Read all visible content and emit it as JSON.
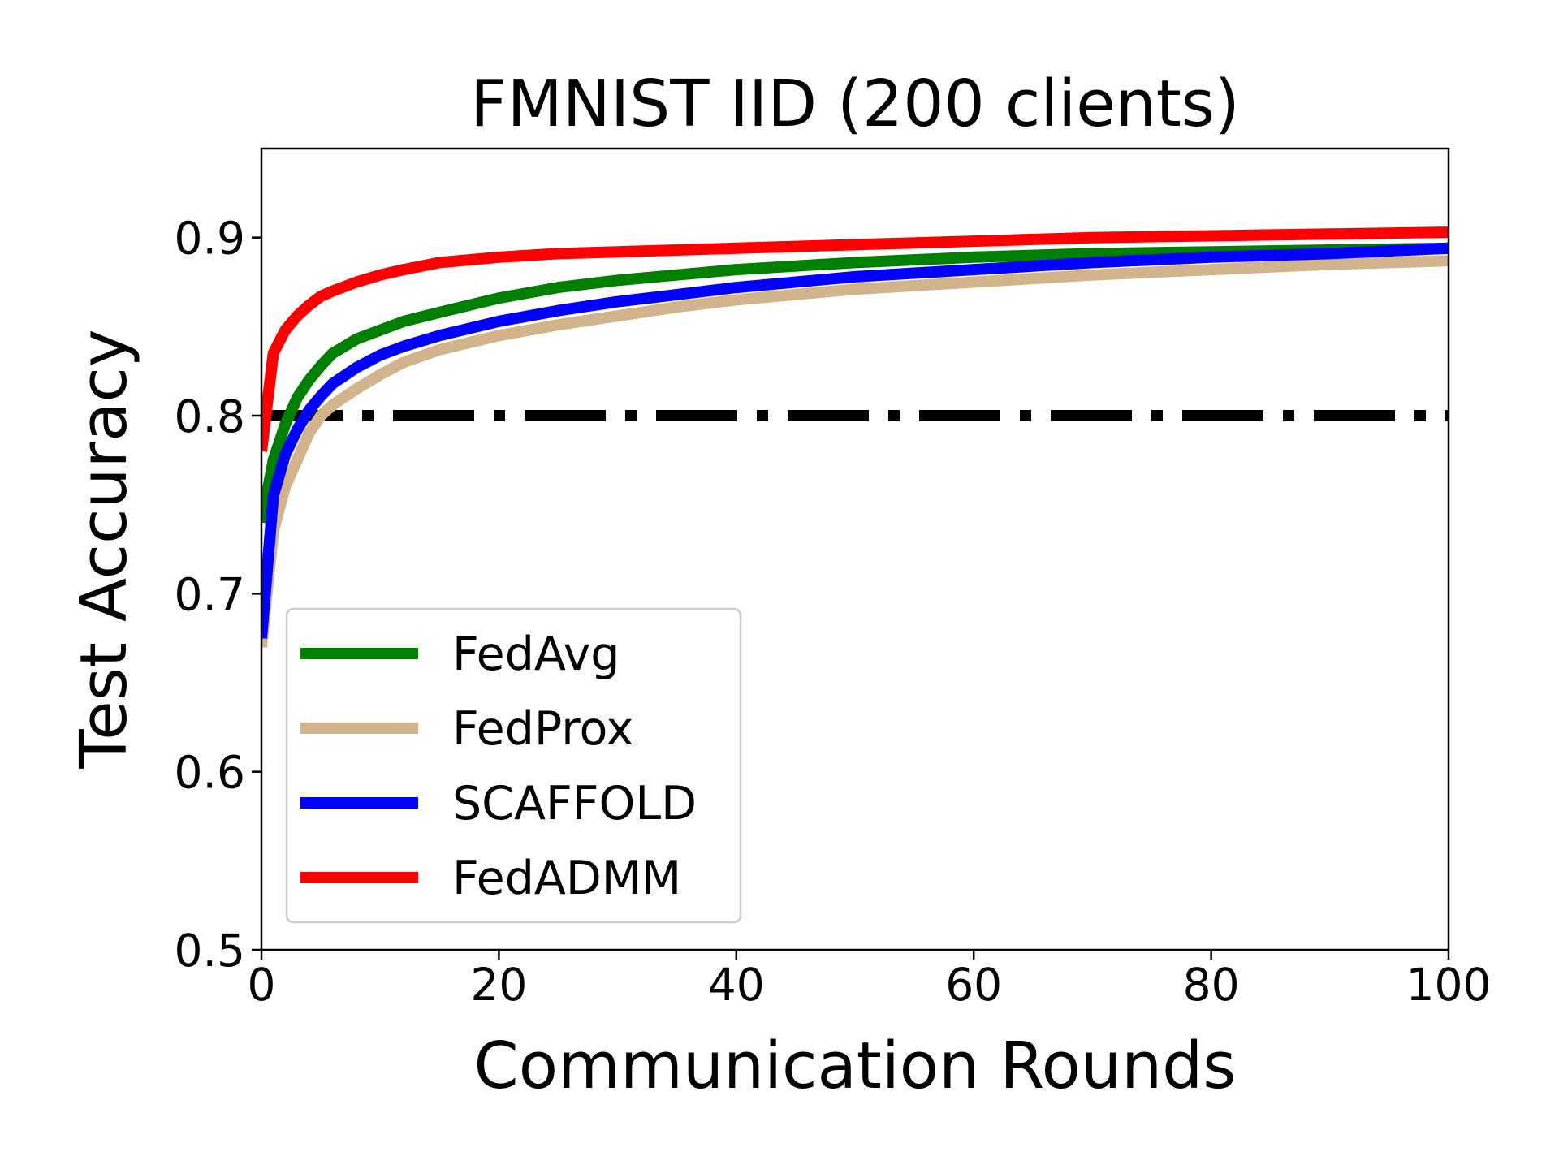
{
  "chart_data": {
    "type": "line",
    "title": "FMNIST IID (200 clients)",
    "xlabel": "Communication Rounds",
    "ylabel": "Test Accuracy",
    "xlim": [
      0,
      100
    ],
    "ylim": [
      0.5,
      0.95
    ],
    "xticks": [
      0,
      20,
      40,
      60,
      80,
      100
    ],
    "xtick_labels": [
      "0",
      "20",
      "40",
      "60",
      "80",
      "100"
    ],
    "yticks": [
      0.5,
      0.6,
      0.7,
      0.8,
      0.9
    ],
    "ytick_labels": [
      "0.5",
      "0.6",
      "0.7",
      "0.8",
      "0.9"
    ],
    "grid": false,
    "legend_position": "lower-left",
    "x": [
      0,
      1,
      2,
      3,
      4,
      5,
      6,
      8,
      10,
      12,
      15,
      20,
      25,
      30,
      35,
      40,
      50,
      60,
      70,
      80,
      90,
      100
    ],
    "series": [
      {
        "name": "FedAvg",
        "color": "#008000",
        "values": [
          0.74,
          0.775,
          0.795,
          0.81,
          0.82,
          0.828,
          0.835,
          0.843,
          0.848,
          0.853,
          0.858,
          0.866,
          0.872,
          0.876,
          0.879,
          0.882,
          0.886,
          0.889,
          0.891,
          0.892,
          0.893,
          0.894
        ]
      },
      {
        "name": "FedProx",
        "color": "#d2b48c",
        "values": [
          0.67,
          0.735,
          0.76,
          0.775,
          0.79,
          0.8,
          0.806,
          0.815,
          0.823,
          0.83,
          0.837,
          0.845,
          0.851,
          0.856,
          0.861,
          0.865,
          0.871,
          0.875,
          0.879,
          0.882,
          0.885,
          0.887
        ]
      },
      {
        "name": "SCAFFOLD",
        "color": "#0000ff",
        "values": [
          0.675,
          0.755,
          0.778,
          0.792,
          0.803,
          0.811,
          0.818,
          0.827,
          0.834,
          0.839,
          0.845,
          0.853,
          0.859,
          0.864,
          0.868,
          0.872,
          0.878,
          0.882,
          0.886,
          0.889,
          0.891,
          0.894
        ]
      },
      {
        "name": "FedADMM",
        "color": "#ff0000",
        "values": [
          0.78,
          0.835,
          0.848,
          0.856,
          0.862,
          0.867,
          0.87,
          0.875,
          0.879,
          0.882,
          0.886,
          0.889,
          0.891,
          0.892,
          0.893,
          0.894,
          0.896,
          0.898,
          0.9,
          0.901,
          0.902,
          0.903
        ]
      }
    ],
    "reference_line": {
      "y": 0.8,
      "color": "#000000",
      "style": "dash-dot"
    }
  }
}
